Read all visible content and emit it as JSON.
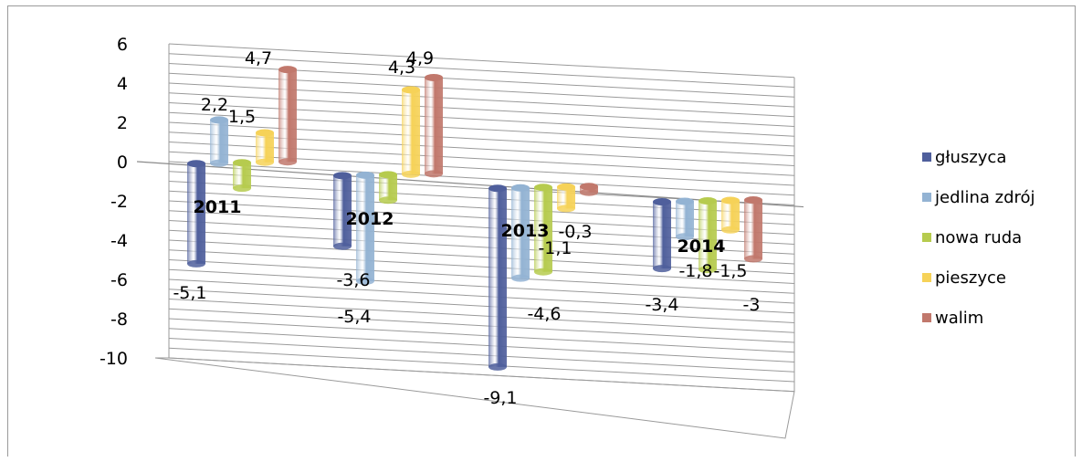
{
  "chart_data": {
    "type": "bar",
    "categories": [
      "2011",
      "2012",
      "2013",
      "2014"
    ],
    "series": [
      {
        "name": "głuszyca",
        "values": [
          -5.1,
          -3.6,
          -9.1,
          -3.4
        ],
        "labels": [
          "-5,1",
          "-3,6",
          "-9,1",
          "-3,4"
        ],
        "color": "#4f5f9c"
      },
      {
        "name": "jedlina zdrój",
        "values": [
          2.2,
          -5.4,
          -4.6,
          -1.8
        ],
        "labels": [
          "2,2",
          "-5,4",
          "-4,6",
          "-1,8"
        ],
        "color": "#93b3d3"
      },
      {
        "name": "nowa ruda",
        "values": [
          -1.3,
          -1.3,
          -4.3,
          -3.5
        ],
        "labels": [
          "",
          "",
          "",
          ""
        ],
        "color": "#b6cb4e"
      },
      {
        "name": "pieszyce",
        "values": [
          1.5,
          4.3,
          -1.1,
          -1.5
        ],
        "labels": [
          "1,5",
          "4,3",
          "-1,1",
          "-1,5"
        ],
        "color": "#f6d258"
      },
      {
        "name": "walim",
        "values": [
          4.7,
          4.9,
          -0.3,
          -3.0
        ],
        "labels": [
          "4,7",
          "4,9",
          "-0,3",
          "-3"
        ],
        "color": "#c1786c"
      }
    ],
    "ylim": [
      -10,
      6
    ],
    "yticks": [
      "6",
      "4",
      "2",
      "0",
      "-2",
      "-4",
      "-6",
      "-8",
      "-10"
    ],
    "grid": true,
    "legend": "right"
  }
}
